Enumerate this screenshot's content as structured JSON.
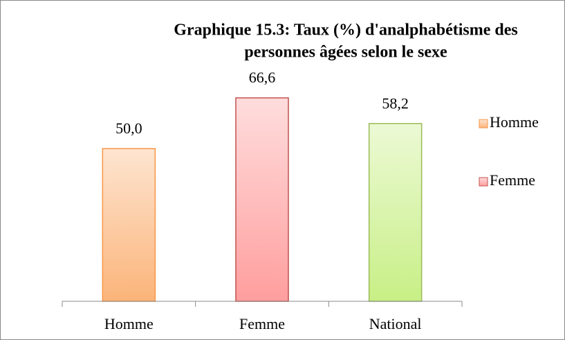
{
  "chart_data": {
    "type": "bar",
    "title": "Graphique 15.3: Taux (%) d'analphabétisme des personnes âgées selon le sexe",
    "title_lines": [
      "Graphique 15.3: Taux (%) d'analphabétisme des",
      "personnes âgées selon le sexe"
    ],
    "categories": [
      "Homme",
      "Femme",
      "National"
    ],
    "values": [
      50.0,
      66.6,
      58.2
    ],
    "value_labels": [
      "50,0",
      "66,6",
      "58,2"
    ],
    "colors": [
      "#fbb47a",
      "#ff9e9e",
      "#c8ef86"
    ],
    "edge_colors": [
      "#f79646",
      "#c0504d",
      "#9bbb59"
    ],
    "legend": [
      {
        "name": "Homme",
        "color": "#fbb47a",
        "edge": "#f79646"
      },
      {
        "name": "Femme",
        "color": "#ff9e9e",
        "edge": "#c0504d"
      }
    ],
    "ylim": [
      0,
      70
    ],
    "grid": false
  }
}
